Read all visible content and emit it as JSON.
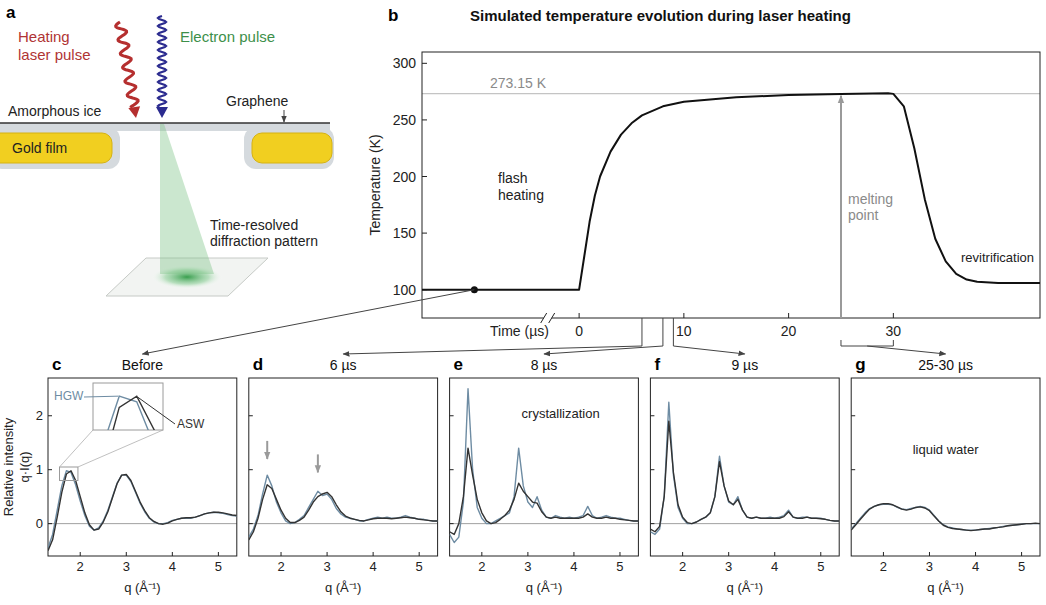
{
  "diagram": {
    "label": "a",
    "heating_laser": [
      "Heating",
      "laser pulse"
    ],
    "electron_pulse": "Electron pulse",
    "graphene": "Graphene",
    "ice": "Amorphous ice",
    "gold": "Gold film",
    "detector": [
      "Time-resolved",
      "diffraction pattern"
    ]
  },
  "chart_data": [
    {
      "type": "line",
      "label": "b",
      "title": "Simulated temperature evolution during laser heating",
      "x_label": "Time (µs)",
      "y_label": "Temperature (K)",
      "xlim": [
        -15,
        44
      ],
      "ylim": [
        75,
        310
      ],
      "xticks": [
        0,
        10,
        20,
        30
      ],
      "yticks": [
        100,
        150,
        200,
        250,
        300
      ],
      "axis_break": -3,
      "color": "#111111",
      "x": [
        -15,
        -10,
        -3,
        0,
        0.5,
        1,
        1.5,
        2,
        3,
        4,
        5,
        6,
        8,
        10,
        15,
        20,
        25,
        29.5,
        30,
        31,
        32,
        33,
        34,
        35,
        36,
        37,
        38,
        40,
        44
      ],
      "values": [
        100,
        100,
        100,
        100,
        130,
        160,
        183,
        200,
        222,
        237,
        247,
        254,
        262,
        266,
        270,
        272,
        273,
        273.5,
        273,
        262,
        225,
        180,
        145,
        125,
        114,
        109,
        107,
        106,
        106
      ],
      "reference_line": {
        "value": 273.15,
        "label": "273.15 K"
      },
      "annotations": [
        {
          "text": "flash heating"
        },
        {
          "text": "revitrification"
        },
        {
          "text": "melting point",
          "x": 25,
          "y": 273.15
        }
      ],
      "snapshots": [
        [
          -10
        ],
        [
          6
        ],
        [
          8
        ],
        [
          9
        ],
        [
          25,
          30
        ]
      ]
    },
    {
      "type": "line",
      "label": "c",
      "title": "Before",
      "x_label": "q (Å⁻¹)",
      "y_label": [
        "Relative intensity",
        "q·I(q)"
      ],
      "xlim": [
        1.3,
        5.4
      ],
      "ylim": [
        -0.6,
        2.7
      ],
      "xticks": [
        2,
        3,
        4,
        5
      ],
      "yticks": [
        0,
        1,
        2
      ],
      "x": [
        1.3,
        1.4,
        1.5,
        1.6,
        1.7,
        1.8,
        1.9,
        2.0,
        2.1,
        2.2,
        2.3,
        2.4,
        2.5,
        2.6,
        2.7,
        2.8,
        2.9,
        3.0,
        3.1,
        3.2,
        3.3,
        3.4,
        3.5,
        3.6,
        3.7,
        3.8,
        3.9,
        4.0,
        4.1,
        4.2,
        4.3,
        4.4,
        4.5,
        4.6,
        4.7,
        4.8,
        4.9,
        5.0,
        5.1,
        5.2,
        5.3,
        5.4
      ],
      "series": [
        {
          "name": "HGW",
          "color": "#6e8ca3",
          "values": [
            -0.45,
            -0.2,
            0.25,
            0.7,
            0.98,
            0.95,
            0.72,
            0.42,
            0.15,
            -0.05,
            -0.12,
            -0.08,
            0.05,
            0.25,
            0.5,
            0.75,
            0.9,
            0.9,
            0.78,
            0.58,
            0.38,
            0.22,
            0.1,
            0.03,
            0.0,
            0.0,
            0.02,
            0.06,
            0.08,
            0.1,
            0.1,
            0.1,
            0.12,
            0.15,
            0.18,
            0.2,
            0.21,
            0.2,
            0.19,
            0.17,
            0.15,
            0.14
          ]
        },
        {
          "name": "ASW",
          "color": "#333333",
          "values": [
            -0.5,
            -0.3,
            0.12,
            0.58,
            0.92,
            0.98,
            0.8,
            0.5,
            0.2,
            -0.02,
            -0.12,
            -0.1,
            0.03,
            0.22,
            0.48,
            0.74,
            0.9,
            0.91,
            0.8,
            0.6,
            0.4,
            0.24,
            0.11,
            0.04,
            0.0,
            -0.01,
            0.01,
            0.05,
            0.08,
            0.1,
            0.11,
            0.11,
            0.12,
            0.15,
            0.18,
            0.2,
            0.21,
            0.21,
            0.2,
            0.18,
            0.16,
            0.15
          ]
        }
      ],
      "inset": {
        "xlim": [
          1.55,
          1.95
        ],
        "ylim": [
          0.8,
          1.05
        ]
      }
    },
    {
      "type": "line",
      "label": "d",
      "title": "6 µs",
      "x_label": "q (Å⁻¹)",
      "xlim": [
        1.3,
        5.4
      ],
      "ylim": [
        -0.6,
        2.7
      ],
      "xticks": [
        2,
        3,
        4,
        5
      ],
      "yticks": [
        0,
        1,
        2
      ],
      "tick_labels": "x",
      "x": [
        1.3,
        1.4,
        1.5,
        1.6,
        1.7,
        1.8,
        1.9,
        2.0,
        2.1,
        2.2,
        2.3,
        2.4,
        2.5,
        2.6,
        2.7,
        2.8,
        2.9,
        3.0,
        3.1,
        3.2,
        3.3,
        3.4,
        3.5,
        3.6,
        3.7,
        3.8,
        3.9,
        4.0,
        4.1,
        4.2,
        4.3,
        4.4,
        4.5,
        4.6,
        4.7,
        4.8,
        4.9,
        5.0,
        5.1,
        5.2,
        5.3,
        5.4
      ],
      "series": [
        {
          "color": "#6e8ca3",
          "values": [
            -0.25,
            -0.1,
            0.15,
            0.55,
            0.9,
            0.7,
            0.4,
            0.2,
            0.05,
            0.0,
            0.02,
            0.08,
            0.15,
            0.3,
            0.45,
            0.6,
            0.52,
            0.55,
            0.45,
            0.28,
            0.18,
            0.12,
            0.1,
            0.08,
            0.05,
            0.05,
            0.08,
            0.1,
            0.12,
            0.1,
            0.12,
            0.1,
            0.1,
            0.12,
            0.15,
            0.12,
            0.1,
            0.08,
            0.08,
            0.06,
            0.05,
            0.05
          ]
        },
        {
          "color": "#333333",
          "values": [
            -0.3,
            -0.15,
            0.1,
            0.45,
            0.72,
            0.65,
            0.45,
            0.25,
            0.1,
            0.02,
            0.02,
            0.06,
            0.12,
            0.25,
            0.4,
            0.5,
            0.55,
            0.58,
            0.5,
            0.35,
            0.22,
            0.14,
            0.1,
            0.08,
            0.06,
            0.05,
            0.07,
            0.09,
            0.1,
            0.1,
            0.1,
            0.09,
            0.1,
            0.11,
            0.12,
            0.11,
            0.1,
            0.08,
            0.07,
            0.06,
            0.05,
            0.05
          ]
        }
      ],
      "arrows": [
        {
          "x": 1.7,
          "y": 1.2
        },
        {
          "x": 2.8,
          "y": 0.95
        }
      ]
    },
    {
      "type": "line",
      "label": "e",
      "title": "8 µs",
      "x_label": "q (Å⁻¹)",
      "xlim": [
        1.3,
        5.4
      ],
      "ylim": [
        -0.6,
        2.7
      ],
      "xticks": [
        2,
        3,
        4,
        5
      ],
      "yticks": [
        0,
        1,
        2
      ],
      "tick_labels": "x",
      "x": [
        1.3,
        1.4,
        1.5,
        1.6,
        1.7,
        1.8,
        1.9,
        2.0,
        2.1,
        2.2,
        2.3,
        2.4,
        2.5,
        2.6,
        2.7,
        2.8,
        2.9,
        3.0,
        3.1,
        3.2,
        3.3,
        3.4,
        3.5,
        3.6,
        3.7,
        3.8,
        3.9,
        4.0,
        4.1,
        4.2,
        4.3,
        4.4,
        4.5,
        4.6,
        4.7,
        4.8,
        4.9,
        5.0,
        5.1,
        5.2,
        5.3,
        5.4
      ],
      "series": [
        {
          "color": "#6e8ca3",
          "values": [
            -0.2,
            -0.35,
            -0.25,
            0.4,
            2.5,
            1.0,
            0.3,
            0.1,
            0.0,
            0.0,
            0.05,
            0.1,
            0.15,
            0.2,
            0.5,
            1.4,
            0.7,
            0.4,
            0.3,
            0.5,
            0.25,
            0.12,
            0.1,
            0.15,
            0.12,
            0.1,
            0.12,
            0.1,
            0.12,
            0.15,
            0.32,
            0.15,
            0.1,
            0.12,
            0.15,
            0.12,
            0.1,
            0.1,
            0.08,
            0.06,
            0.05,
            0.05
          ]
        },
        {
          "color": "#333333",
          "values": [
            -0.15,
            -0.2,
            0.0,
            0.5,
            1.4,
            0.9,
            0.45,
            0.2,
            0.05,
            0.0,
            0.02,
            0.08,
            0.15,
            0.25,
            0.45,
            0.75,
            0.6,
            0.5,
            0.4,
            0.38,
            0.22,
            0.12,
            0.1,
            0.12,
            0.1,
            0.1,
            0.1,
            0.1,
            0.1,
            0.12,
            0.18,
            0.12,
            0.1,
            0.1,
            0.12,
            0.1,
            0.1,
            0.08,
            0.07,
            0.06,
            0.05,
            0.05
          ]
        }
      ],
      "annotations": [
        {
          "text": "crystallization"
        }
      ]
    },
    {
      "type": "line",
      "label": "f",
      "title": "9 µs",
      "x_label": "q (Å⁻¹)",
      "xlim": [
        1.3,
        5.4
      ],
      "ylim": [
        -0.6,
        2.7
      ],
      "xticks": [
        2,
        3,
        4,
        5
      ],
      "yticks": [
        0,
        1,
        2
      ],
      "tick_labels": "x",
      "x": [
        1.3,
        1.4,
        1.5,
        1.6,
        1.7,
        1.8,
        1.9,
        2.0,
        2.1,
        2.2,
        2.3,
        2.4,
        2.5,
        2.6,
        2.7,
        2.8,
        2.9,
        3.0,
        3.1,
        3.2,
        3.3,
        3.4,
        3.5,
        3.6,
        3.7,
        3.8,
        3.9,
        4.0,
        4.1,
        4.2,
        4.3,
        4.4,
        4.5,
        4.6,
        4.7,
        4.8,
        4.9,
        5.0,
        5.1,
        5.2,
        5.3,
        5.4
      ],
      "series": [
        {
          "color": "#6e8ca3",
          "values": [
            -0.15,
            -0.2,
            -0.1,
            0.5,
            2.25,
            0.9,
            0.3,
            0.1,
            0.0,
            0.0,
            0.03,
            0.08,
            0.12,
            0.2,
            0.5,
            1.25,
            0.7,
            0.4,
            0.35,
            0.5,
            0.25,
            0.12,
            0.1,
            0.12,
            0.1,
            0.1,
            0.12,
            0.1,
            0.12,
            0.15,
            0.25,
            0.12,
            0.1,
            0.12,
            0.12,
            0.1,
            0.1,
            0.1,
            0.08,
            0.06,
            0.05,
            0.05
          ]
        },
        {
          "color": "#333333",
          "values": [
            -0.1,
            -0.15,
            -0.05,
            0.5,
            1.9,
            0.95,
            0.35,
            0.12,
            0.02,
            0.0,
            0.03,
            0.08,
            0.12,
            0.2,
            0.5,
            1.15,
            0.7,
            0.42,
            0.35,
            0.45,
            0.25,
            0.12,
            0.1,
            0.12,
            0.1,
            0.1,
            0.1,
            0.1,
            0.1,
            0.13,
            0.22,
            0.12,
            0.1,
            0.1,
            0.12,
            0.1,
            0.1,
            0.09,
            0.08,
            0.06,
            0.05,
            0.05
          ]
        }
      ]
    },
    {
      "type": "line",
      "label": "g",
      "title": "25-30 µs",
      "x_label": "q (Å⁻¹)",
      "xlim": [
        1.3,
        5.4
      ],
      "ylim": [
        -0.6,
        2.7
      ],
      "xticks": [
        2,
        3,
        4,
        5
      ],
      "yticks": [
        0,
        1,
        2
      ],
      "tick_labels": "x",
      "x": [
        1.3,
        1.4,
        1.5,
        1.6,
        1.7,
        1.8,
        1.9,
        2.0,
        2.1,
        2.2,
        2.3,
        2.4,
        2.5,
        2.6,
        2.7,
        2.8,
        2.9,
        3.0,
        3.1,
        3.2,
        3.3,
        3.4,
        3.5,
        3.6,
        3.7,
        3.8,
        3.9,
        4.0,
        4.1,
        4.2,
        4.3,
        4.4,
        4.5,
        4.6,
        4.7,
        4.8,
        4.9,
        5.0,
        5.1,
        5.2,
        5.3,
        5.4
      ],
      "series": [
        {
          "color": "#6e8ca3",
          "values": [
            -0.1,
            0.0,
            0.1,
            0.2,
            0.28,
            0.32,
            0.35,
            0.36,
            0.36,
            0.35,
            0.3,
            0.27,
            0.26,
            0.28,
            0.3,
            0.32,
            0.3,
            0.25,
            0.15,
            0.05,
            -0.02,
            -0.06,
            -0.08,
            -0.1,
            -0.11,
            -0.12,
            -0.12,
            -0.12,
            -0.11,
            -0.1,
            -0.09,
            -0.08,
            -0.07,
            -0.05,
            -0.04,
            -0.03,
            -0.02,
            -0.01,
            0.0,
            0.0,
            0.0,
            0.0
          ]
        },
        {
          "color": "#333333",
          "values": [
            -0.12,
            -0.02,
            0.08,
            0.18,
            0.27,
            0.32,
            0.35,
            0.37,
            0.37,
            0.35,
            0.31,
            0.27,
            0.25,
            0.27,
            0.3,
            0.31,
            0.29,
            0.24,
            0.14,
            0.05,
            -0.03,
            -0.07,
            -0.09,
            -0.1,
            -0.11,
            -0.12,
            -0.13,
            -0.12,
            -0.11,
            -0.1,
            -0.1,
            -0.08,
            -0.07,
            -0.06,
            -0.04,
            -0.03,
            -0.02,
            -0.01,
            0.0,
            0.0,
            0.01,
            0.0
          ]
        }
      ],
      "annotations": [
        {
          "text": "liquid water"
        }
      ]
    }
  ]
}
